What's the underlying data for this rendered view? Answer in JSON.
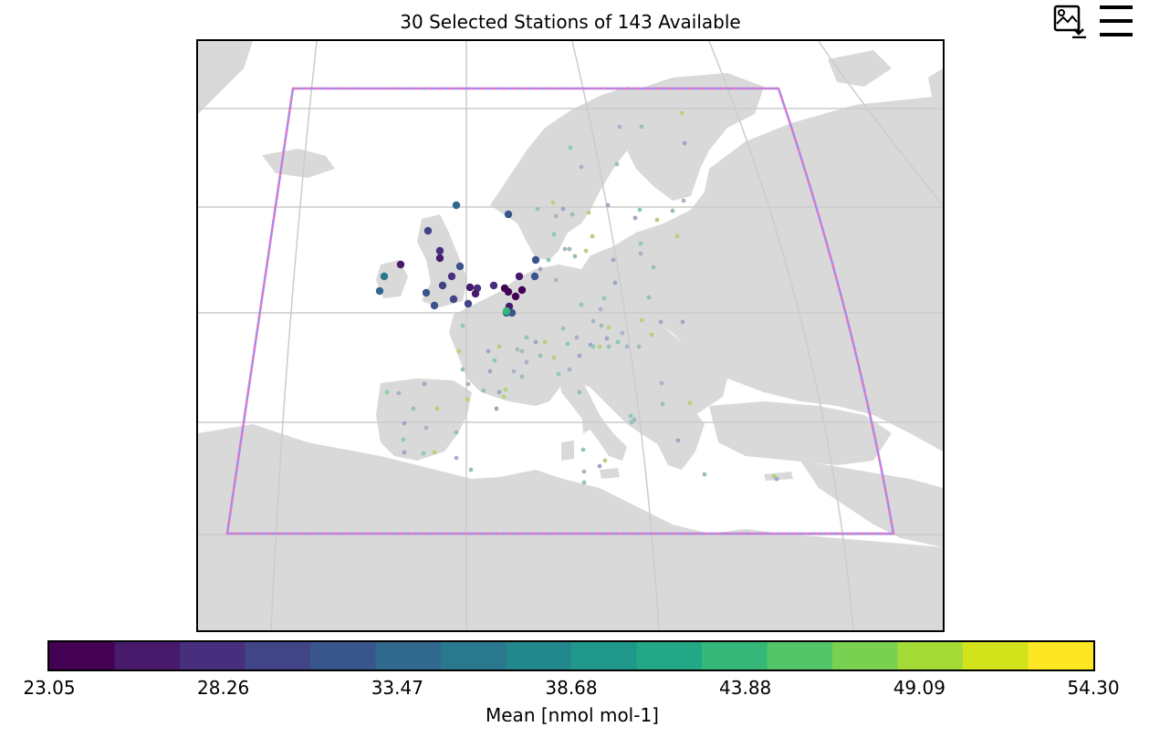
{
  "title": "30 Selected Stations of 143 Available",
  "toolbar": {
    "download_icon": "image-download-icon",
    "menu_icon": "hamburger-menu-icon"
  },
  "colors": {
    "land": "#d9d9d9",
    "ocean": "#ffffff",
    "grid": "#cccccc",
    "domain_box_1": "#e377c2",
    "domain_box_2": "#b087e8"
  },
  "colorbar": {
    "label": "Mean [nmol mol-1]",
    "ticks": [
      "23.05",
      "28.26",
      "33.47",
      "38.68",
      "43.88",
      "49.09",
      "54.30"
    ],
    "colors": [
      "#440154",
      "#481a6c",
      "#472f7d",
      "#414487",
      "#39568c",
      "#31688e",
      "#2a788e",
      "#23888e",
      "#1f988b",
      "#22a884",
      "#35b779",
      "#54c568",
      "#7ad151",
      "#a5db36",
      "#d2e21b",
      "#fde725"
    ]
  },
  "chart_data": {
    "type": "scatter",
    "title": "30 Selected Stations of 143 Available",
    "colorbar_label": "Mean [nmol mol-1]",
    "value_range": [
      23.05,
      54.3
    ],
    "selected_count": 30,
    "available_count": 143
  }
}
